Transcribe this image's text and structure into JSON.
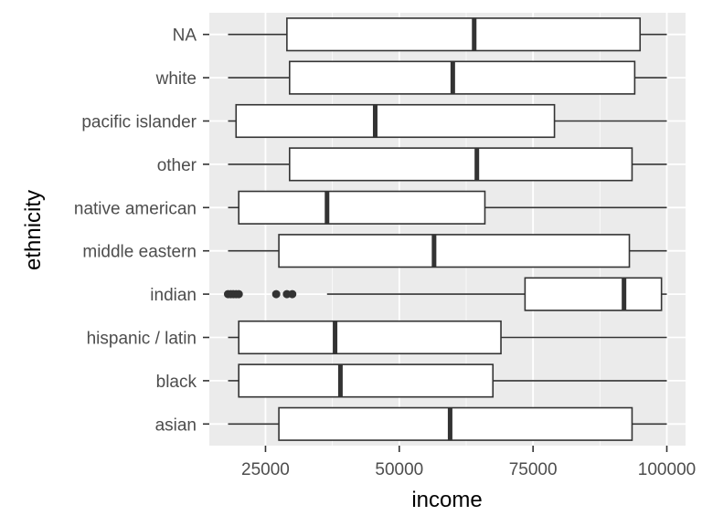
{
  "chart_data": {
    "type": "boxplot",
    "orientation": "horizontal",
    "xlabel": "income",
    "ylabel": "ethnicity",
    "xlim": [
      14500,
      103500
    ],
    "x_ticks": [
      25000,
      50000,
      75000,
      100000
    ],
    "x_tick_labels": [
      "25000",
      "50000",
      "75000",
      "100000"
    ],
    "grid": true,
    "categories": [
      "asian",
      "black",
      "hispanic / latin",
      "indian",
      "middle eastern",
      "native american",
      "other",
      "pacific islander",
      "white",
      "NA"
    ],
    "boxes": [
      {
        "category": "asian",
        "whisker_low": 18000,
        "q1": 27500,
        "median": 59500,
        "q3": 93500,
        "whisker_high": 100000,
        "outliers": []
      },
      {
        "category": "black",
        "whisker_low": 18000,
        "q1": 20000,
        "median": 39000,
        "q3": 67500,
        "whisker_high": 100000,
        "outliers": []
      },
      {
        "category": "hispanic / latin",
        "whisker_low": 18000,
        "q1": 20000,
        "median": 38000,
        "q3": 69000,
        "whisker_high": 100000,
        "outliers": []
      },
      {
        "category": "indian",
        "whisker_low": 36500,
        "q1": 73500,
        "median": 92000,
        "q3": 99000,
        "whisker_high": 100000,
        "outliers": [
          18000,
          18500,
          19000,
          19500,
          20000,
          27000,
          29000,
          30000
        ]
      },
      {
        "category": "middle eastern",
        "whisker_low": 18000,
        "q1": 27500,
        "median": 56500,
        "q3": 93000,
        "whisker_high": 100000,
        "outliers": []
      },
      {
        "category": "native american",
        "whisker_low": 18000,
        "q1": 20000,
        "median": 36500,
        "q3": 66000,
        "whisker_high": 100000,
        "outliers": []
      },
      {
        "category": "other",
        "whisker_low": 18000,
        "q1": 29500,
        "median": 64500,
        "q3": 93500,
        "whisker_high": 100000,
        "outliers": []
      },
      {
        "category": "pacific islander",
        "whisker_low": 18000,
        "q1": 19500,
        "median": 45500,
        "q3": 79000,
        "whisker_high": 100000,
        "outliers": []
      },
      {
        "category": "white",
        "whisker_low": 18000,
        "q1": 29500,
        "median": 60000,
        "q3": 94000,
        "whisker_high": 100000,
        "outliers": []
      },
      {
        "category": "NA",
        "whisker_low": 18000,
        "q1": 29000,
        "median": 64000,
        "q3": 95000,
        "whisker_high": 100000,
        "outliers": []
      }
    ],
    "colors": {
      "panel_background": "#ebebeb",
      "grid_major": "#ffffff",
      "box_fill": "#ffffff",
      "box_stroke": "#333333",
      "tick_label": "#4d4d4d"
    }
  }
}
